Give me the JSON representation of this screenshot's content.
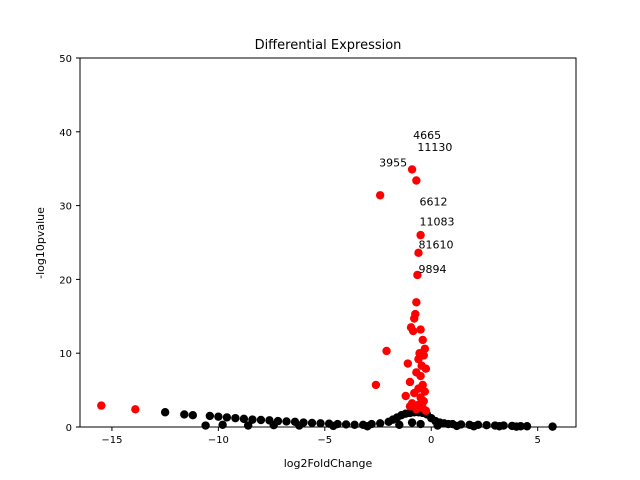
{
  "chart_data": {
    "type": "scatter",
    "title": "Differential Expression",
    "xlabel": "log2FoldChange",
    "ylabel": "-log10pvalue",
    "xlim": [
      -16.5,
      6.8
    ],
    "ylim": [
      0,
      50
    ],
    "xticks": [
      -15,
      -10,
      -5,
      0,
      5
    ],
    "yticks": [
      0,
      10,
      20,
      30,
      40,
      50
    ],
    "grid": false,
    "colors": {
      "significant": "#ff0000",
      "nonsignificant": "#000000"
    },
    "series": [
      {
        "color": "#000000",
        "points": [
          [
            -12.5,
            2.0
          ],
          [
            -11.6,
            1.7
          ],
          [
            -11.2,
            1.6
          ],
          [
            -10.4,
            1.5
          ],
          [
            -10.0,
            1.4
          ],
          [
            -9.6,
            1.3
          ],
          [
            -9.2,
            1.2
          ],
          [
            -8.8,
            1.1
          ],
          [
            -8.4,
            1.0
          ],
          [
            -8.0,
            0.95
          ],
          [
            -7.6,
            0.9
          ],
          [
            -7.2,
            0.8
          ],
          [
            -6.8,
            0.75
          ],
          [
            -6.4,
            0.7
          ],
          [
            -6.0,
            0.6
          ],
          [
            -5.6,
            0.55
          ],
          [
            -5.2,
            0.5
          ],
          [
            -4.8,
            0.45
          ],
          [
            -4.4,
            0.4
          ],
          [
            -4.0,
            0.35
          ],
          [
            -3.6,
            0.3
          ],
          [
            -3.2,
            0.3
          ],
          [
            -2.8,
            0.4
          ],
          [
            -2.4,
            0.5
          ],
          [
            -2.0,
            0.7
          ],
          [
            -1.8,
            1.0
          ],
          [
            -1.6,
            1.3
          ],
          [
            -1.4,
            1.6
          ],
          [
            -1.2,
            1.8
          ],
          [
            -1.0,
            1.9
          ],
          [
            -0.8,
            2.0
          ],
          [
            -0.6,
            2.0
          ],
          [
            -0.4,
            1.9
          ],
          [
            -0.2,
            1.7
          ],
          [
            0.0,
            1.2
          ],
          [
            0.2,
            0.8
          ],
          [
            0.4,
            0.6
          ],
          [
            0.6,
            0.5
          ],
          [
            0.8,
            0.4
          ],
          [
            1.0,
            0.4
          ],
          [
            1.4,
            0.35
          ],
          [
            1.8,
            0.3
          ],
          [
            2.2,
            0.3
          ],
          [
            2.6,
            0.25
          ],
          [
            3.0,
            0.2
          ],
          [
            3.4,
            0.2
          ],
          [
            3.8,
            0.15
          ],
          [
            4.2,
            0.1
          ],
          [
            4.5,
            0.1
          ],
          [
            5.7,
            0.05
          ],
          [
            -10.6,
            0.2
          ],
          [
            -9.8,
            0.3
          ],
          [
            -8.6,
            0.2
          ],
          [
            -7.4,
            0.25
          ],
          [
            -6.2,
            0.2
          ],
          [
            -4.6,
            0.15
          ],
          [
            -3.0,
            0.1
          ],
          [
            -1.5,
            0.3
          ],
          [
            -0.9,
            0.6
          ],
          [
            -0.5,
            0.4
          ],
          [
            0.3,
            0.2
          ],
          [
            1.2,
            0.15
          ],
          [
            2.0,
            0.1
          ],
          [
            3.2,
            0.1
          ],
          [
            4.0,
            0.05
          ]
        ]
      },
      {
        "color": "#ff0000",
        "points": [
          [
            -15.5,
            2.9
          ],
          [
            -13.9,
            2.4
          ],
          [
            -2.6,
            5.7
          ],
          [
            -2.1,
            10.3
          ],
          [
            -2.4,
            31.4
          ],
          [
            -0.9,
            34.9
          ],
          [
            -0.7,
            33.4
          ],
          [
            -0.5,
            26.0
          ],
          [
            -0.6,
            23.6
          ],
          [
            -0.65,
            20.6
          ],
          [
            -0.7,
            16.9
          ],
          [
            -0.75,
            15.3
          ],
          [
            -0.8,
            14.7
          ],
          [
            -0.95,
            13.5
          ],
          [
            -0.85,
            13.0
          ],
          [
            -0.5,
            13.2
          ],
          [
            -0.3,
            10.6
          ],
          [
            -0.4,
            11.8
          ],
          [
            -0.55,
            10.0
          ],
          [
            -0.35,
            9.7
          ],
          [
            -0.6,
            9.2
          ],
          [
            -1.1,
            8.6
          ],
          [
            -0.45,
            8.3
          ],
          [
            -0.25,
            7.9
          ],
          [
            -0.7,
            7.4
          ],
          [
            -0.5,
            6.9
          ],
          [
            -1.0,
            6.1
          ],
          [
            -0.4,
            5.7
          ],
          [
            -0.6,
            5.2
          ],
          [
            -0.3,
            4.8
          ],
          [
            -0.8,
            4.6
          ],
          [
            -1.2,
            4.2
          ],
          [
            -0.5,
            4.0
          ],
          [
            -0.35,
            3.5
          ],
          [
            -0.9,
            3.2
          ],
          [
            -0.6,
            3.0
          ],
          [
            -1.0,
            2.8
          ],
          [
            -0.4,
            2.6
          ],
          [
            -0.7,
            2.4
          ],
          [
            -0.25,
            2.2
          ]
        ]
      }
    ],
    "annotations": [
      {
        "text": "4665",
        "x": -0.85,
        "y": 39.0
      },
      {
        "text": "11130",
        "x": -0.65,
        "y": 37.4
      },
      {
        "text": "3955",
        "x": -2.45,
        "y": 35.3
      },
      {
        "text": "6612",
        "x": -0.55,
        "y": 30.0
      },
      {
        "text": "11083",
        "x": -0.55,
        "y": 27.3
      },
      {
        "text": "81610",
        "x": -0.6,
        "y": 24.2
      },
      {
        "text": "9894",
        "x": -0.6,
        "y": 20.9
      }
    ]
  }
}
